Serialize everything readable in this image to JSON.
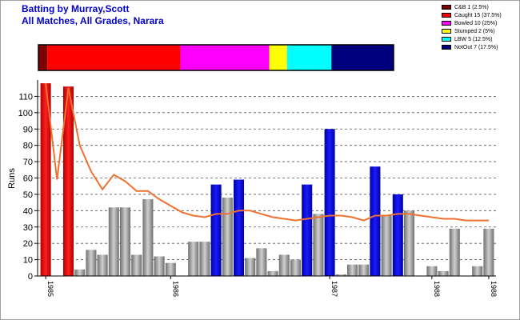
{
  "title_line1": "Batting by Murray,Scott",
  "title_line2": "All Matches, All Grades, Narara",
  "legend": [
    {
      "label": "C&B 1 (2.5%)",
      "color": "#7f0000",
      "count": 1
    },
    {
      "label": "Caught 15 (37.5%)",
      "color": "#ff0000",
      "count": 15
    },
    {
      "label": "Bowled 10 (25%)",
      "color": "#ff00ff",
      "count": 10
    },
    {
      "label": "Stumped 2 (5%)",
      "color": "#ffff00",
      "count": 2
    },
    {
      "label": "LBW 5 (12.5%)",
      "color": "#00ffff",
      "count": 5
    },
    {
      "label": "NotOut 7 (17.5%)",
      "color": "#00007f",
      "count": 7
    }
  ],
  "chart_data": {
    "type": "bar",
    "ylabel": "Runs",
    "xlabel": "",
    "ylim": [
      0,
      120
    ],
    "yticks": [
      0,
      10,
      20,
      30,
      40,
      50,
      60,
      70,
      80,
      90,
      100,
      110
    ],
    "xtick_labels": [
      {
        "label": "1985",
        "index": 0
      },
      {
        "label": "1986",
        "index": 11
      },
      {
        "label": "1987",
        "index": 25
      },
      {
        "label": "1988",
        "index": 34
      },
      {
        "label": "1988",
        "index": 39
      }
    ],
    "dismissal_colors": {
      "caught": "#e00000",
      "bowled": "#a0a0a0",
      "notout": "#0000dd"
    },
    "average_line_color": "#f07030",
    "innings": [
      {
        "runs": 118,
        "type": "caught"
      },
      {
        "runs": 0,
        "type": "bowled"
      },
      {
        "runs": 116,
        "type": "caught"
      },
      {
        "runs": 4,
        "type": "bowled"
      },
      {
        "runs": 16,
        "type": "bowled"
      },
      {
        "runs": 13,
        "type": "bowled"
      },
      {
        "runs": 42,
        "type": "bowled"
      },
      {
        "runs": 42,
        "type": "bowled"
      },
      {
        "runs": 13,
        "type": "bowled"
      },
      {
        "runs": 47,
        "type": "bowled"
      },
      {
        "runs": 12,
        "type": "bowled"
      },
      {
        "runs": 8,
        "type": "bowled"
      },
      {
        "runs": 0,
        "type": "bowled"
      },
      {
        "runs": 21,
        "type": "bowled"
      },
      {
        "runs": 21,
        "type": "bowled"
      },
      {
        "runs": 56,
        "type": "notout"
      },
      {
        "runs": 48,
        "type": "bowled"
      },
      {
        "runs": 59,
        "type": "notout"
      },
      {
        "runs": 11,
        "type": "bowled"
      },
      {
        "runs": 17,
        "type": "bowled"
      },
      {
        "runs": 3,
        "type": "bowled"
      },
      {
        "runs": 13,
        "type": "bowled"
      },
      {
        "runs": 10,
        "type": "bowled"
      },
      {
        "runs": 56,
        "type": "notout"
      },
      {
        "runs": 38,
        "type": "bowled"
      },
      {
        "runs": 90,
        "type": "notout"
      },
      {
        "runs": 1,
        "type": "bowled"
      },
      {
        "runs": 7,
        "type": "bowled"
      },
      {
        "runs": 7,
        "type": "bowled"
      },
      {
        "runs": 67,
        "type": "notout"
      },
      {
        "runs": 37,
        "type": "bowled"
      },
      {
        "runs": 50,
        "type": "notout"
      },
      {
        "runs": 40,
        "type": "bowled"
      },
      {
        "runs": 0,
        "type": "bowled"
      },
      {
        "runs": 6,
        "type": "bowled"
      },
      {
        "runs": 3,
        "type": "bowled"
      },
      {
        "runs": 29,
        "type": "bowled"
      },
      {
        "runs": 0,
        "type": "bowled"
      },
      {
        "runs": 6,
        "type": "bowled"
      },
      {
        "runs": 29,
        "type": "bowled"
      }
    ],
    "average_line": [
      118,
      59,
      115,
      80,
      64,
      53,
      62,
      58,
      52,
      52,
      47,
      43,
      39,
      37,
      36,
      38,
      38,
      40,
      40,
      38,
      36,
      35,
      34,
      35,
      36,
      37,
      37,
      36,
      34,
      37,
      37,
      38,
      38,
      37,
      36,
      35,
      35,
      34,
      34,
      34
    ]
  }
}
